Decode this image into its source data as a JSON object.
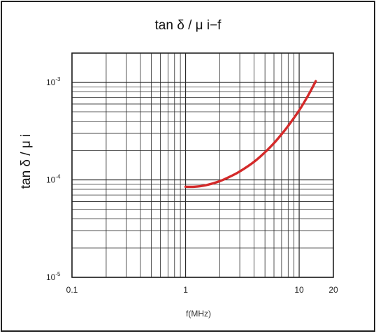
{
  "chart_data": {
    "type": "line",
    "title": "tan δ / μ i−f",
    "xlabel": "f(MHz)",
    "ylabel": "tan δ / μ i",
    "x_scale": "log",
    "y_scale": "log",
    "xlim": [
      0.1,
      20
    ],
    "ylim": [
      1e-05,
      0.002
    ],
    "x_ticks": [
      {
        "value": 0.1,
        "label": "0.1"
      },
      {
        "value": 1,
        "label": "1"
      },
      {
        "value": 10,
        "label": "10"
      },
      {
        "value": 20,
        "label": "20"
      }
    ],
    "y_ticks": [
      {
        "value": 1e-05,
        "base": "10",
        "exp": "-5"
      },
      {
        "value": 0.0001,
        "base": "10",
        "exp": "-4"
      },
      {
        "value": 0.001,
        "base": "10",
        "exp": "-3"
      }
    ],
    "grid": true,
    "series": [
      {
        "color": "#d42a2a",
        "x": [
          1,
          1.2,
          1.5,
          2,
          2.5,
          3,
          4,
          5,
          6,
          7,
          8,
          10,
          12,
          14
        ],
        "y": [
          8.5e-05,
          8.5e-05,
          8.8e-05,
          9.7e-05,
          0.000109,
          0.000122,
          0.000153,
          0.000192,
          0.000238,
          0.000294,
          0.000358,
          0.000517,
          0.000736,
          0.00103
        ]
      }
    ]
  }
}
